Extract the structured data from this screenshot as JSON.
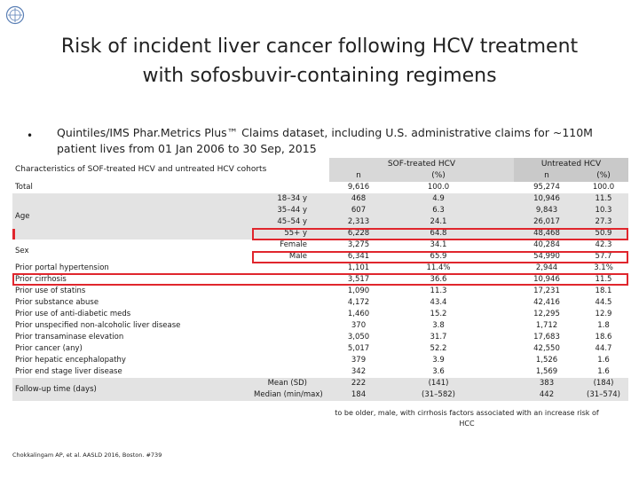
{
  "slide": {
    "title_line1": "Risk of incident liver cancer following HCV treatment",
    "title_line2": "with sofosbuvir-containing regimens",
    "bullet": "Quintiles/IMS Phar.Metrics Plus™ Claims dataset, including U.S. administrative claims for ~110M patient lives from 01 Jan 2006 to 30 Sep, 2015",
    "footnote_line1": "to be older, male, with cirrhosis factors associated with an increase risk of",
    "footnote_line2": "HCC",
    "citation": "Chokkalingam AP, et al. AASLD 2016, Boston. #739"
  },
  "table": {
    "title": "Characteristics of SOF-treated HCV and untreated HCV cohorts",
    "group_sof": "SOF-treated HCV",
    "group_untreated": "Untreated HCV",
    "col_n": "n",
    "col_pct": "(%)",
    "rows": [
      {
        "label": "Total",
        "sub": "",
        "n1": "9,616",
        "p1": "100.0",
        "n2": "95,274",
        "p2": "100.0"
      },
      {
        "label": "",
        "sub": "18–34 y",
        "n1": "468",
        "p1": "4.9",
        "n2": "10,946",
        "p2": "11.5"
      },
      {
        "label": "",
        "sub": "35–44 y",
        "n1": "607",
        "p1": "6.3",
        "n2": "9,843",
        "p2": "10.3"
      },
      {
        "label": "Age",
        "sub": "45–54 y",
        "n1": "2,313",
        "p1": "24.1",
        "n2": "26,017",
        "p2": "27.3"
      },
      {
        "label": "",
        "sub": "55+ y",
        "n1": "6,228",
        "p1": "64.8",
        "n2": "48,468",
        "p2": "50.9"
      },
      {
        "label": "",
        "sub": "Female",
        "n1": "3,275",
        "p1": "34.1",
        "n2": "40,284",
        "p2": "42.3"
      },
      {
        "label": "Sex",
        "sub": "Male",
        "n1": "6,341",
        "p1": "65.9",
        "n2": "54,990",
        "p2": "57.7"
      },
      {
        "label": "Prior portal hypertension",
        "sub": "",
        "n1": "1,101",
        "p1": "11.4%",
        "n2": "2,944",
        "p2": "3.1%"
      },
      {
        "label": "Prior cirrhosis",
        "sub": "",
        "n1": "3,517",
        "p1": "36.6",
        "n2": "10,946",
        "p2": "11.5"
      },
      {
        "label": "Prior use of statins",
        "sub": "",
        "n1": "1,090",
        "p1": "11.3",
        "n2": "17,231",
        "p2": "18.1"
      },
      {
        "label": "Prior substance abuse",
        "sub": "",
        "n1": "4,172",
        "p1": "43.4",
        "n2": "42,416",
        "p2": "44.5"
      },
      {
        "label": "Prior use of anti-diabetic meds",
        "sub": "",
        "n1": "1,460",
        "p1": "15.2",
        "n2": "12,295",
        "p2": "12.9"
      },
      {
        "label": "Prior unspecified non-alcoholic liver disease",
        "sub": "",
        "n1": "370",
        "p1": "3.8",
        "n2": "1,712",
        "p2": "1.8"
      },
      {
        "label": "Prior transaminase elevation",
        "sub": "",
        "n1": "3,050",
        "p1": "31.7",
        "n2": "17,683",
        "p2": "18.6"
      },
      {
        "label": "Prior cancer (any)",
        "sub": "",
        "n1": "5,017",
        "p1": "52.2",
        "n2": "42,550",
        "p2": "44.7"
      },
      {
        "label": "Prior hepatic encephalopathy",
        "sub": "",
        "n1": "379",
        "p1": "3.9",
        "n2": "1,526",
        "p2": "1.6"
      },
      {
        "label": "Prior end stage liver disease",
        "sub": "",
        "n1": "342",
        "p1": "3.6",
        "n2": "1,569",
        "p2": "1.6"
      },
      {
        "label": "",
        "sub": "Mean (SD)",
        "n1": "222",
        "p1": "(141)",
        "n2": "383",
        "p2": "(184)"
      },
      {
        "label": "Follow-up time (days)",
        "sub": "Median (min/max)",
        "n1": "184",
        "p1": "(31–582)",
        "n2": "442",
        "p2": "(31–574)"
      }
    ]
  },
  "colors": {
    "highlight": "#e0262d",
    "header_sof": "#d8d8d8",
    "header_untreated": "#c9c9c9",
    "row_shade": "#e3e3e3"
  }
}
